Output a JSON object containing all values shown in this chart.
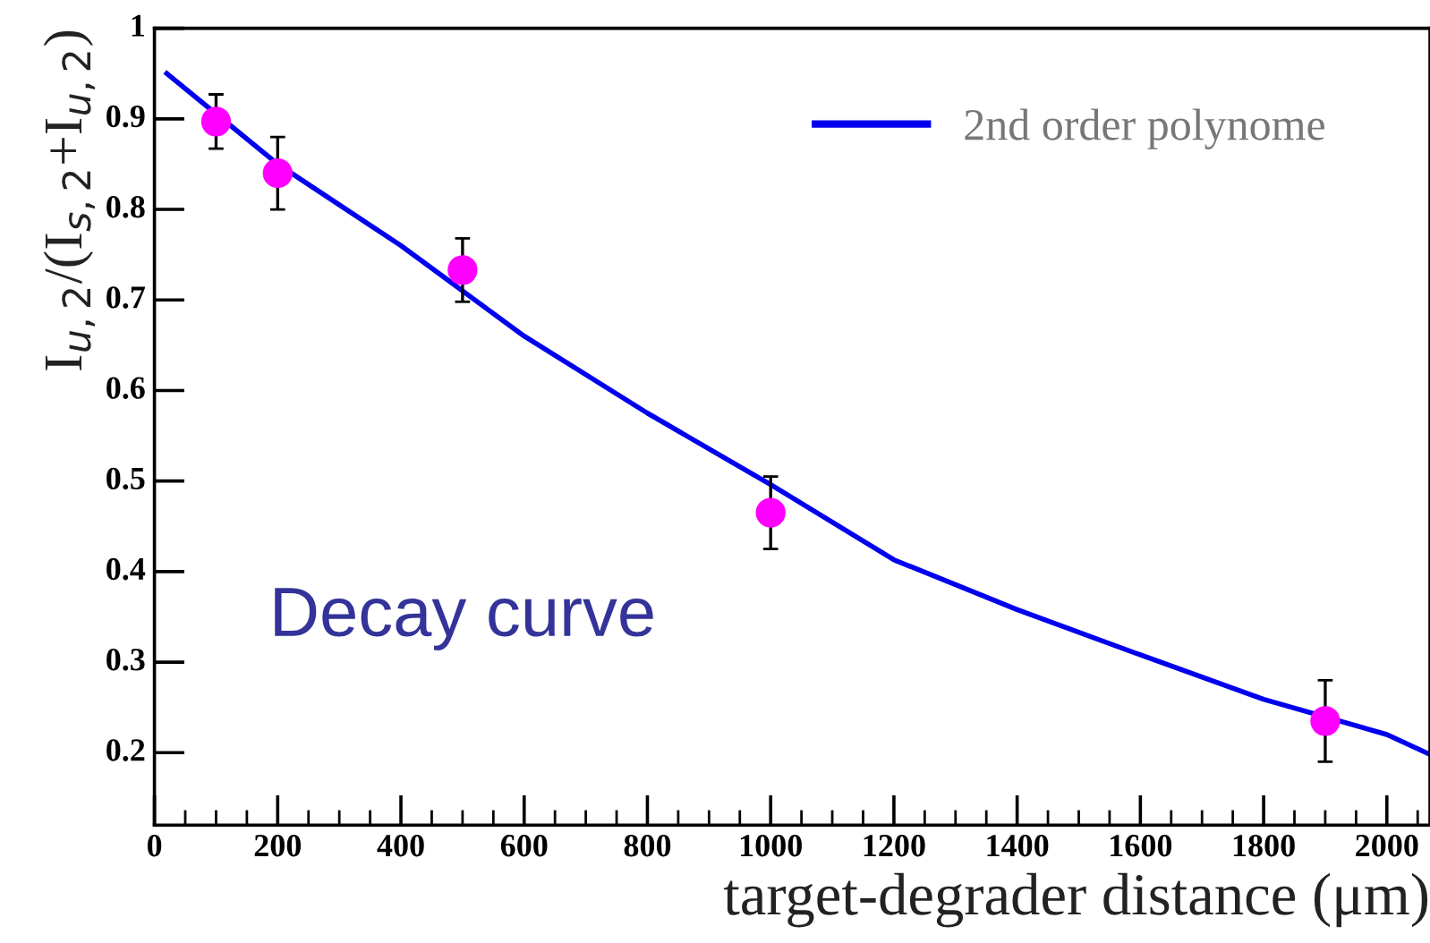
{
  "chart_data": {
    "type": "scatter",
    "xlabel": "target-degrader distance (μm)",
    "ylabel": "I$_{u,2}$/(I$_{s,2}$+I$_{u,2}$)",
    "xlim": [
      0,
      2070
    ],
    "ylim": [
      0.12,
      1.0
    ],
    "xticks": [
      0,
      200,
      400,
      600,
      800,
      1000,
      1200,
      1400,
      1600,
      1800,
      2000
    ],
    "yticks": [
      0.2,
      0.3,
      0.4,
      0.5,
      0.6,
      0.7,
      0.8,
      0.9,
      {
        "value": 1,
        "label": "1"
      }
    ],
    "legend": "top right",
    "marker": "circle",
    "grid": false,
    "annotations": [
      "Decay curve"
    ],
    "series": [
      {
        "type": "scatter",
        "color": "#ff00ff",
        "x": [
          100,
          200,
          500,
          1000,
          1900
        ],
        "values": [
          0.897,
          0.84,
          0.733,
          0.465,
          0.235
        ],
        "errors": [
          0.03,
          0.04,
          0.035,
          0.04,
          0.045
        ]
      },
      {
        "type": "line",
        "name": "2nd order polynome",
        "color": "#0000ee",
        "marker": "none",
        "line_style": "solid",
        "x": [
          20,
          200,
          400,
          600,
          800,
          1000,
          1200,
          1400,
          1600,
          1800,
          2000,
          2070
        ],
        "values": [
          0.95,
          0.85,
          0.76,
          0.66,
          0.575,
          0.496,
          0.413,
          0.358,
          0.308,
          0.259,
          0.22,
          0.198
        ]
      }
    ]
  }
}
